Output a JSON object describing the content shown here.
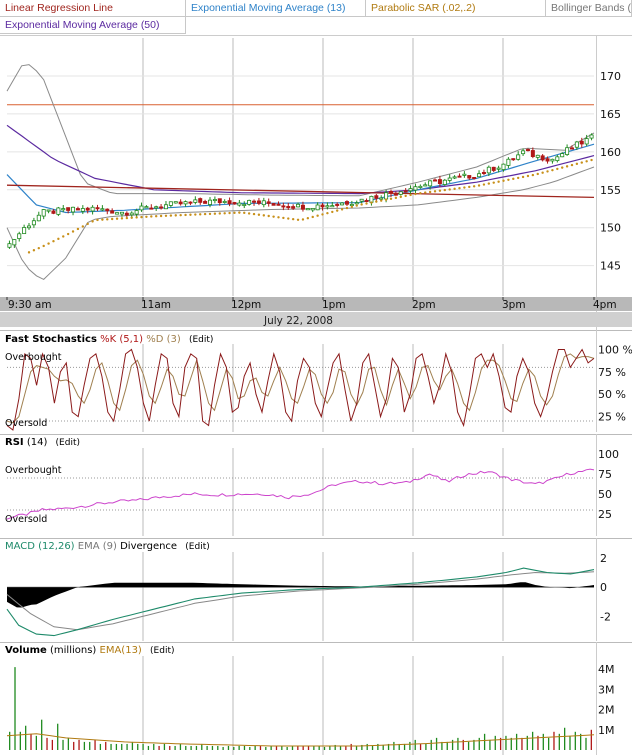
{
  "overlays": [
    {
      "label": "Linear Regression Line",
      "color": "#a0251e"
    },
    {
      "label": "Exponential Moving Average (13)",
      "color": "#2f83c9"
    },
    {
      "label": "Parabolic SAR (.02,.2)",
      "color": "#b07a10"
    },
    {
      "label": "Bollinger Bands (",
      "color": "#777777"
    },
    {
      "label": "Exponential Moving Average (50)",
      "color": "#5b2aa0"
    }
  ],
  "date_label": "July 22, 2008",
  "panels": {
    "stoch": {
      "title": "Fast Stochastics",
      "k": "%K (5,1)",
      "d": "%D (3)",
      "edit": "(Edit)",
      "overbought": "Overbought",
      "oversold": "Oversold",
      "y_ticks": [
        "100 %",
        "75 %",
        "50 %",
        "25 %"
      ]
    },
    "rsi": {
      "title": "RSI",
      "param": "(14)",
      "edit": "(Edit)",
      "overbought": "Overbought",
      "oversold": "Oversold",
      "y_ticks": [
        "100",
        "75",
        "50",
        "25"
      ]
    },
    "macd": {
      "title": "MACD (12,26)",
      "ema": "EMA (9)",
      "div": "Divergence",
      "edit": "(Edit)",
      "y_ticks": [
        "2",
        "0",
        "-2"
      ]
    },
    "volume": {
      "title": "Volume",
      "unit": "(millions)",
      "ema": "EMA(13)",
      "edit": "(Edit)",
      "y_ticks": [
        "4M",
        "3M",
        "2M",
        "1M"
      ]
    }
  },
  "colors": {
    "up": "#1f8a1f",
    "down": "#b01818",
    "stoch_k": "#8b1a1a",
    "stoch_d": "#a08050",
    "rsi": "#cc44cc",
    "macd": "#1e8a6a",
    "macd_ema": "#888888",
    "divergence": "#000000",
    "vol": "#1f8a1f",
    "vol_ema": "#b07a10",
    "grid": "#bbbbbb",
    "ref": "#d96030"
  },
  "chart_data": [
    {
      "type": "candlestick",
      "title": "",
      "x_ticks": [
        "9:30 am",
        "11am",
        "12pm",
        "1pm",
        "2pm",
        "3pm",
        "4pm"
      ],
      "y_ticks": [
        170,
        165,
        160,
        155,
        150,
        145
      ],
      "ylim": [
        141,
        175
      ],
      "reference_line": 166.2,
      "regression_line": [
        [
          0,
          155.6
        ],
        [
          1,
          154.0
        ]
      ],
      "close_anchors": [
        [
          0,
          147.5
        ],
        [
          0.03,
          150
        ],
        [
          0.06,
          152
        ],
        [
          0.1,
          152.3
        ],
        [
          0.15,
          152.5
        ],
        [
          0.2,
          152
        ],
        [
          0.25,
          152.8
        ],
        [
          0.3,
          153.2
        ],
        [
          0.35,
          153.5
        ],
        [
          0.4,
          153.4
        ],
        [
          0.45,
          153.2
        ],
        [
          0.5,
          152.8
        ],
        [
          0.55,
          153.0
        ],
        [
          0.6,
          153.6
        ],
        [
          0.65,
          154.5
        ],
        [
          0.7,
          155.5
        ],
        [
          0.75,
          156.3
        ],
        [
          0.8,
          157.0
        ],
        [
          0.85,
          158.5
        ],
        [
          0.88,
          160.0
        ],
        [
          0.9,
          159.5
        ],
        [
          0.93,
          159.0
        ],
        [
          0.96,
          160.5
        ],
        [
          1.0,
          162.0
        ]
      ],
      "ema13_anchors": [
        [
          0,
          157
        ],
        [
          0.05,
          153
        ],
        [
          0.1,
          152
        ],
        [
          0.2,
          152.3
        ],
        [
          0.4,
          153.2
        ],
        [
          0.6,
          153.3
        ],
        [
          0.7,
          155
        ],
        [
          0.8,
          156.5
        ],
        [
          0.9,
          158.8
        ],
        [
          1.0,
          161
        ]
      ],
      "ema50_anchors": [
        [
          0,
          163.5
        ],
        [
          0.08,
          159
        ],
        [
          0.15,
          156.5
        ],
        [
          0.25,
          155
        ],
        [
          0.4,
          154.6
        ],
        [
          0.6,
          154.5
        ],
        [
          0.7,
          155
        ],
        [
          0.8,
          156
        ],
        [
          0.9,
          157.5
        ],
        [
          1.0,
          159.5
        ]
      ],
      "bb_upper_anchors": [
        [
          0,
          168
        ],
        [
          0.03,
          172
        ],
        [
          0.06,
          170
        ],
        [
          0.1,
          162
        ],
        [
          0.13,
          156
        ],
        [
          0.18,
          154.5
        ],
        [
          0.3,
          154.5
        ],
        [
          0.45,
          154.3
        ],
        [
          0.6,
          154.2
        ],
        [
          0.7,
          156
        ],
        [
          0.8,
          158
        ],
        [
          0.88,
          160.5
        ],
        [
          0.95,
          160.2
        ],
        [
          1.0,
          162.5
        ]
      ],
      "bb_lower_anchors": [
        [
          0,
          150
        ],
        [
          0.03,
          145
        ],
        [
          0.06,
          143
        ],
        [
          0.1,
          146
        ],
        [
          0.14,
          151
        ],
        [
          0.18,
          151.5
        ],
        [
          0.3,
          152
        ],
        [
          0.45,
          152.4
        ],
        [
          0.6,
          152.6
        ],
        [
          0.7,
          153
        ],
        [
          0.8,
          154
        ],
        [
          0.88,
          155
        ],
        [
          0.93,
          156
        ],
        [
          1.0,
          158
        ]
      ],
      "sar_anchors": [
        [
          0.03,
          146.5
        ],
        [
          0.06,
          147.5
        ],
        [
          0.1,
          149
        ],
        [
          0.15,
          151
        ],
        [
          0.25,
          151.5
        ],
        [
          0.4,
          152
        ],
        [
          0.5,
          151
        ],
        [
          0.6,
          153
        ],
        [
          0.7,
          154.5
        ],
        [
          0.8,
          155.5
        ],
        [
          0.9,
          157
        ],
        [
          1.0,
          159
        ]
      ]
    },
    {
      "type": "line",
      "title": "Fast Stochastics",
      "y_ticks": [
        100,
        75,
        50,
        25
      ],
      "ylim": [
        10,
        105
      ],
      "overbought": 80,
      "oversold": 20,
      "k_values": [
        15,
        10,
        45,
        95,
        90,
        60,
        95,
        80,
        40,
        75,
        85,
        30,
        25,
        60,
        90,
        95,
        70,
        30,
        20,
        55,
        95,
        100,
        80,
        40,
        20,
        60,
        95,
        90,
        40,
        25,
        80,
        95,
        90,
        20,
        15,
        60,
        95,
        80,
        30,
        35,
        70,
        85,
        50,
        30,
        65,
        95,
        75,
        30,
        20,
        65,
        90,
        80,
        40,
        25,
        55,
        85,
        95,
        55,
        20,
        40,
        85,
        95,
        60,
        25,
        45,
        90,
        80,
        30,
        50,
        90,
        95,
        70,
        40,
        60,
        95,
        75,
        30,
        15,
        50,
        90,
        95,
        80,
        95,
        70,
        35,
        30,
        70,
        90,
        75,
        40,
        25,
        45,
        75,
        100,
        100,
        80,
        90,
        100,
        85,
        90
      ],
      "d_values": [
        20,
        18,
        25,
        50,
        75,
        82,
        80,
        78,
        70,
        65,
        66,
        62,
        48,
        40,
        55,
        78,
        85,
        65,
        40,
        32,
        55,
        82,
        88,
        72,
        48,
        40,
        58,
        78,
        70,
        50,
        48,
        68,
        88,
        65,
        40,
        32,
        55,
        78,
        68,
        45,
        48,
        65,
        68,
        52,
        48,
        65,
        80,
        65,
        45,
        40,
        58,
        78,
        72,
        50,
        40,
        52,
        78,
        75,
        50,
        38,
        52,
        78,
        80,
        55,
        38,
        60,
        78,
        62,
        45,
        58,
        80,
        82,
        65,
        55,
        70,
        78,
        62,
        40,
        32,
        52,
        78,
        88,
        88,
        82,
        65,
        45,
        42,
        62,
        78,
        70,
        48,
        38,
        48,
        72,
        92,
        95,
        90,
        92,
        92,
        90
      ]
    },
    {
      "type": "line",
      "title": "RSI (14)",
      "y_ticks": [
        100,
        75,
        50,
        25
      ],
      "ylim": [
        5,
        105
      ],
      "overbought": 70,
      "oversold": 30,
      "anchors": [
        [
          0,
          20
        ],
        [
          0.03,
          24
        ],
        [
          0.06,
          30
        ],
        [
          0.1,
          32
        ],
        [
          0.14,
          36
        ],
        [
          0.18,
          40
        ],
        [
          0.22,
          42
        ],
        [
          0.27,
          47
        ],
        [
          0.32,
          50
        ],
        [
          0.36,
          49
        ],
        [
          0.4,
          50
        ],
        [
          0.44,
          50
        ],
        [
          0.48,
          46
        ],
        [
          0.52,
          51
        ],
        [
          0.56,
          62
        ],
        [
          0.6,
          66
        ],
        [
          0.64,
          63
        ],
        [
          0.68,
          64
        ],
        [
          0.72,
          75
        ],
        [
          0.75,
          65
        ],
        [
          0.78,
          74
        ],
        [
          0.82,
          78
        ],
        [
          0.86,
          68
        ],
        [
          0.9,
          62
        ],
        [
          0.93,
          68
        ],
        [
          0.96,
          76
        ],
        [
          1.0,
          80
        ]
      ]
    },
    {
      "type": "line",
      "title": "MACD (12,26)",
      "y_ticks": [
        2,
        0,
        -2
      ],
      "ylim": [
        -3.6,
        2.4
      ],
      "macd_anchors": [
        [
          0,
          -1.5
        ],
        [
          0.02,
          -2.6
        ],
        [
          0.05,
          -3.2
        ],
        [
          0.08,
          -3.3
        ],
        [
          0.12,
          -2.9
        ],
        [
          0.18,
          -2.2
        ],
        [
          0.25,
          -1.5
        ],
        [
          0.32,
          -0.8
        ],
        [
          0.4,
          -0.4
        ],
        [
          0.5,
          -0.15
        ],
        [
          0.6,
          0.0
        ],
        [
          0.7,
          0.3
        ],
        [
          0.8,
          0.7
        ],
        [
          0.85,
          1.0
        ],
        [
          0.88,
          1.3
        ],
        [
          0.92,
          1.0
        ],
        [
          0.96,
          0.9
        ],
        [
          1.0,
          1.2
        ]
      ],
      "signal_anchors": [
        [
          0,
          -0.5
        ],
        [
          0.04,
          -1.8
        ],
        [
          0.08,
          -2.7
        ],
        [
          0.12,
          -2.9
        ],
        [
          0.18,
          -2.5
        ],
        [
          0.25,
          -1.8
        ],
        [
          0.32,
          -1.1
        ],
        [
          0.4,
          -0.6
        ],
        [
          0.5,
          -0.25
        ],
        [
          0.6,
          -0.05
        ],
        [
          0.7,
          0.2
        ],
        [
          0.8,
          0.55
        ],
        [
          0.86,
          0.85
        ],
        [
          0.9,
          1.0
        ],
        [
          0.95,
          0.95
        ],
        [
          1.0,
          1.05
        ]
      ]
    },
    {
      "type": "bar",
      "title": "Volume (millions)",
      "y_ticks": [
        "4M",
        "3M",
        "2M",
        "1M"
      ],
      "ylim": [
        0,
        4.6
      ],
      "values": [
        0.9,
        4.1,
        0.9,
        1.2,
        0.8,
        0.7,
        1.5,
        0.6,
        0.5,
        1.3,
        0.5,
        0.6,
        0.4,
        0.5,
        0.4,
        0.4,
        0.5,
        0.3,
        0.4,
        0.3,
        0.3,
        0.3,
        0.3,
        0.4,
        0.3,
        0.3,
        0.2,
        0.3,
        0.2,
        0.3,
        0.2,
        0.2,
        0.3,
        0.2,
        0.2,
        0.2,
        0.3,
        0.2,
        0.2,
        0.2,
        0.15,
        0.2,
        0.15,
        0.2,
        0.2,
        0.15,
        0.2,
        0.2,
        0.15,
        0.2,
        0.2,
        0.2,
        0.15,
        0.2,
        0.2,
        0.2,
        0.2,
        0.2,
        0.2,
        0.15,
        0.2,
        0.25,
        0.2,
        0.2,
        0.3,
        0.2,
        0.25,
        0.3,
        0.2,
        0.3,
        0.25,
        0.3,
        0.4,
        0.3,
        0.3,
        0.4,
        0.5,
        0.3,
        0.3,
        0.5,
        0.6,
        0.4,
        0.4,
        0.5,
        0.6,
        0.5,
        0.4,
        0.5,
        0.6,
        0.8,
        0.5,
        0.7,
        0.6,
        0.7,
        0.6,
        0.8,
        0.6,
        0.7,
        0.9,
        0.7,
        0.8,
        0.6,
        0.9,
        0.8,
        1.1,
        0.7,
        0.9,
        0.8,
        0.6,
        1.0
      ],
      "ema_anchors": [
        [
          0,
          0.7
        ],
        [
          0.05,
          0.8
        ],
        [
          0.1,
          0.6
        ],
        [
          0.2,
          0.4
        ],
        [
          0.3,
          0.3
        ],
        [
          0.45,
          0.2
        ],
        [
          0.6,
          0.2
        ],
        [
          0.7,
          0.3
        ],
        [
          0.8,
          0.45
        ],
        [
          0.9,
          0.6
        ],
        [
          1.0,
          0.75
        ]
      ]
    }
  ]
}
